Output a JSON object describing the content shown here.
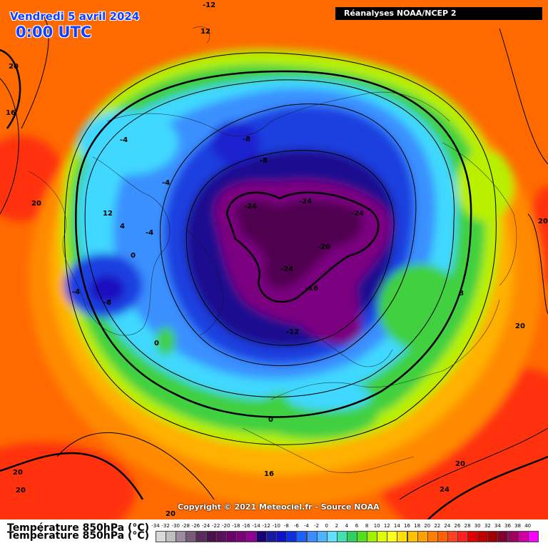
{
  "header": {
    "date": "Vendredi 5 avril 2024",
    "time": "0:00 UTC",
    "source": "Réanalyses NOAA/NCEP 2"
  },
  "footer": {
    "copyright": "Copyright © 2021 Meteociel.fr - Source NOAA"
  },
  "legend": {
    "title": "Température 850hPa (°C)",
    "ticks": [
      "-34",
      "-32",
      "-30",
      "-28",
      "-26",
      "-24",
      "-22",
      "-20",
      "-18",
      "-16",
      "-14",
      "-12",
      "-10",
      "-8",
      "-6",
      "-4",
      "-2",
      "0",
      "2",
      "4",
      "6",
      "8",
      "10",
      "12",
      "14",
      "16",
      "18",
      "20",
      "22",
      "24",
      "26",
      "28",
      "30",
      "32",
      "34",
      "36",
      "38",
      "40"
    ],
    "colors": [
      "#d9d9d9",
      "#bfbfbf",
      "#9e8a9e",
      "#7a5a7a",
      "#5c2a5c",
      "#4b0f4b",
      "#5a0f5a",
      "#6b006b",
      "#7a007a",
      "#8e008e",
      "#1a0070",
      "#1a1aa0",
      "#1010c8",
      "#0a30e0",
      "#1a5fff",
      "#3c8cff",
      "#4fb4ff",
      "#5fe0ff",
      "#40e0b0",
      "#30d060",
      "#50e020",
      "#a0f000",
      "#e0ff00",
      "#ffff20",
      "#ffe000",
      "#ffc000",
      "#ffa000",
      "#ff8000",
      "#ff6000",
      "#ff4020",
      "#ff2020",
      "#e00000",
      "#c00000",
      "#a00000",
      "#800030",
      "#a00060",
      "#d000a0",
      "#ff00ff"
    ]
  },
  "contour_labels": [
    {
      "text": "-12"
    },
    {
      "text": "12"
    },
    {
      "text": "20"
    },
    {
      "text": "16"
    },
    {
      "text": "-4"
    },
    {
      "text": "-8"
    },
    {
      "text": "-8"
    },
    {
      "text": "-4"
    },
    {
      "text": "20"
    },
    {
      "text": "12"
    },
    {
      "text": "4"
    },
    {
      "text": "-4"
    },
    {
      "text": "0"
    },
    {
      "text": "-24"
    },
    {
      "text": "-24"
    },
    {
      "text": "-24"
    },
    {
      "text": "-20"
    },
    {
      "text": "-24"
    },
    {
      "text": "-16"
    },
    {
      "text": "-4"
    },
    {
      "text": "-8"
    },
    {
      "text": "-12"
    },
    {
      "text": "0"
    },
    {
      "text": "20"
    },
    {
      "text": "8"
    },
    {
      "text": "20"
    },
    {
      "text": "0"
    },
    {
      "text": "20"
    },
    {
      "text": "20"
    },
    {
      "text": "16"
    },
    {
      "text": "20"
    },
    {
      "text": "24"
    },
    {
      "text": "20"
    }
  ]
}
